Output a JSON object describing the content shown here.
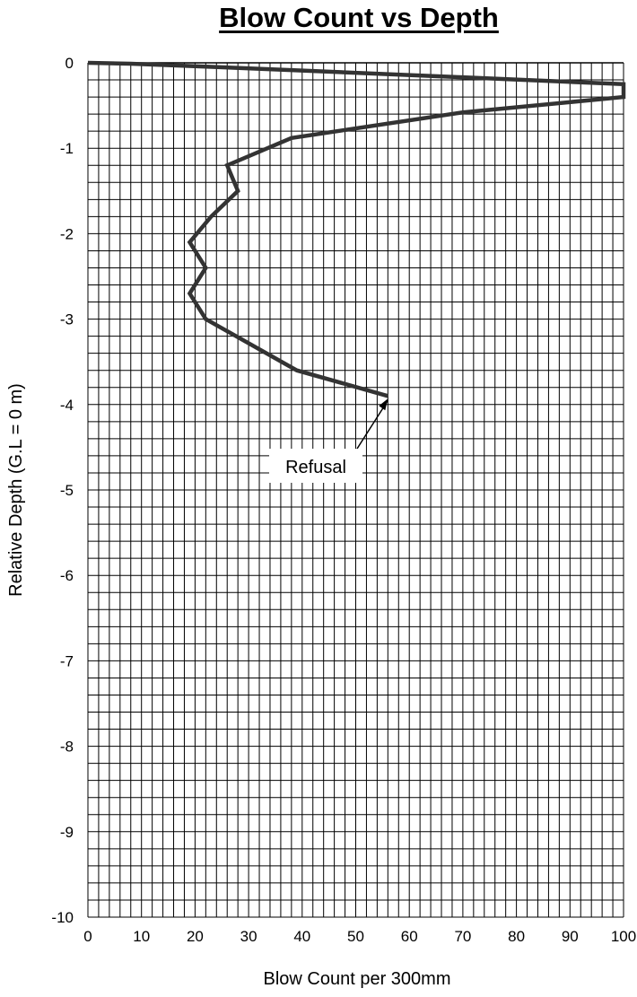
{
  "chart_data": {
    "type": "line",
    "title": "Blow Count vs Depth",
    "xlabel": "Blow Count per 300mm",
    "ylabel": "Relative Depth (G.L = 0 m)",
    "xlim": [
      0,
      100
    ],
    "ylim": [
      -10,
      0
    ],
    "x_ticks": [
      "0",
      "10",
      "20",
      "30",
      "40",
      "50",
      "60",
      "70",
      "80",
      "90",
      "100"
    ],
    "y_ticks": [
      "0",
      "-1",
      "-2",
      "-3",
      "-4",
      "-5",
      "-6",
      "-7",
      "-8",
      "-9",
      "-10"
    ],
    "grid": true,
    "series": [
      {
        "x": [
          0,
          8,
          40,
          70,
          100,
          100,
          70,
          38,
          26,
          28,
          23,
          19,
          22,
          19,
          22,
          39,
          56
        ],
        "y": [
          0,
          -0.01,
          -0.09,
          -0.17,
          -0.25,
          -0.4,
          -0.58,
          -0.88,
          -1.2,
          -1.5,
          -1.8,
          -2.1,
          -2.4,
          -2.7,
          -3.0,
          -3.6,
          -3.9
        ]
      }
    ],
    "annotations": [
      {
        "text": "Refusal",
        "x": 56,
        "y": -3.9
      }
    ]
  }
}
